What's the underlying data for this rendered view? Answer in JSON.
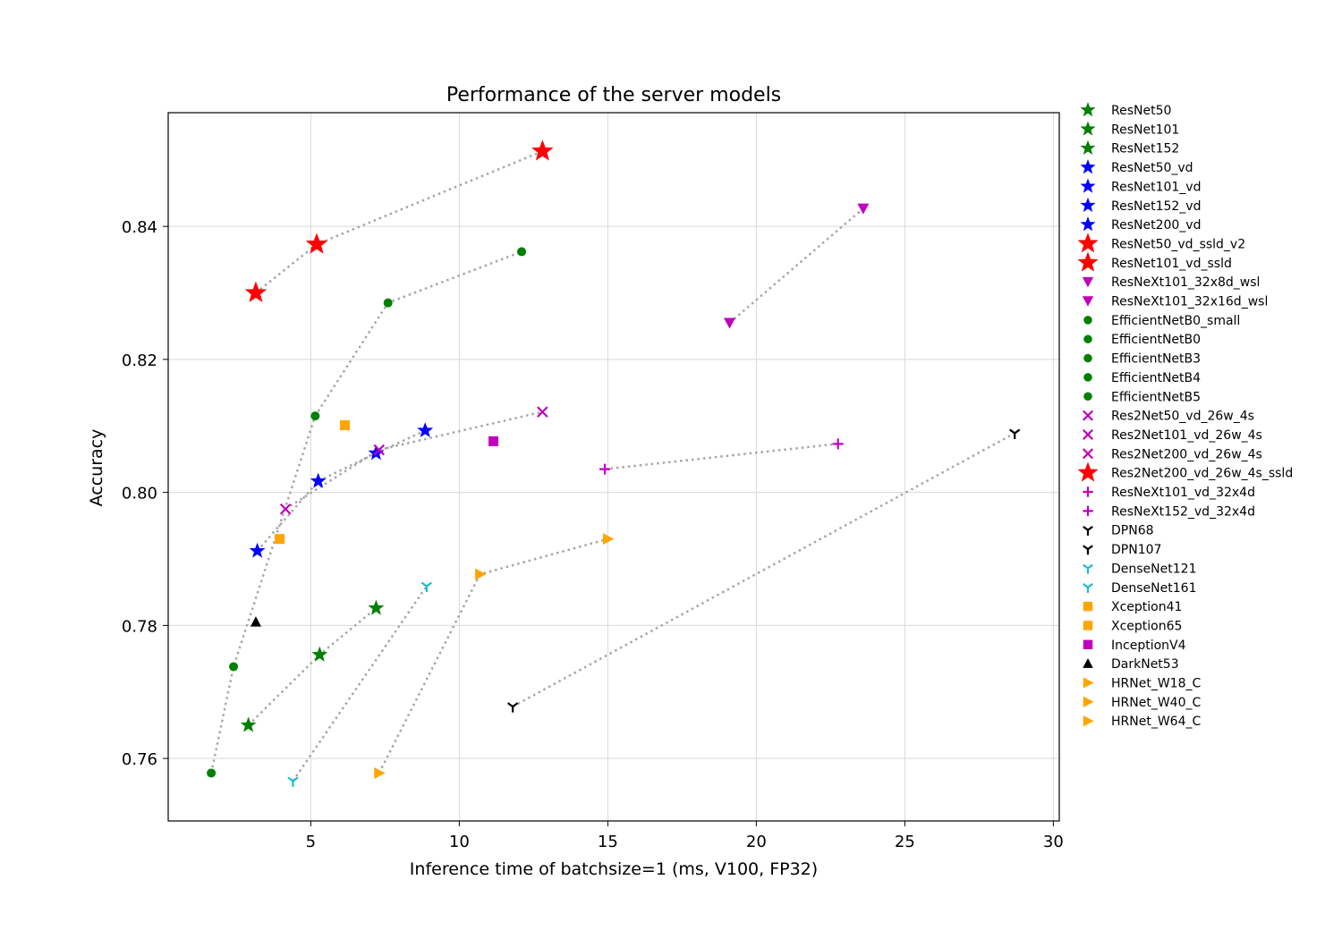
{
  "chart_data": {
    "type": "scatter",
    "title": "Performance of the server models",
    "xlabel": "Inference time of batchsize=1 (ms, V100, FP32)",
    "ylabel": "Accuracy",
    "xlim": [
      0.2,
      30.2
    ],
    "ylim": [
      0.7506,
      0.8571
    ],
    "xticks": [
      5,
      10,
      15,
      20,
      25,
      30
    ],
    "yticks": [
      0.76,
      0.78,
      0.8,
      0.82,
      0.84
    ],
    "xtick_labels": [
      "5",
      "10",
      "15",
      "20",
      "25",
      "30"
    ],
    "ytick_labels": [
      "0.76",
      "0.78",
      "0.80",
      "0.82",
      "0.84"
    ],
    "grid": true,
    "legend_position": "outside-right",
    "colors": {
      "green": "#008000",
      "blue": "#0000ff",
      "red": "#ff0000",
      "magenta": "#bf00bf",
      "black": "#000000",
      "cyan": "#17becf",
      "orange": "#ffa500",
      "connector": "#a6a6a6"
    },
    "families": [
      {
        "name": "ResNet",
        "marker": "star",
        "color": "green",
        "points": [
          [
            2.9,
            0.765
          ],
          [
            5.3,
            0.7756
          ],
          [
            7.2,
            0.7826
          ]
        ]
      },
      {
        "name": "ResNet_vd",
        "marker": "star",
        "color": "blue",
        "points": [
          [
            3.2,
            0.7912
          ],
          [
            5.25,
            0.8017
          ],
          [
            7.2,
            0.8059
          ],
          [
            8.85,
            0.8093
          ]
        ]
      },
      {
        "name": "ResNet_vd_ssld",
        "marker": "bigstar",
        "color": "red",
        "points": [
          [
            3.15,
            0.83
          ],
          [
            5.2,
            0.8373
          ],
          [
            12.8,
            0.8513
          ]
        ]
      },
      {
        "name": "ResNeXt_wsl",
        "marker": "tri_down",
        "color": "magenta",
        "points": [
          [
            19.1,
            0.8255
          ],
          [
            23.6,
            0.8427
          ]
        ]
      },
      {
        "name": "EfficientNet",
        "marker": "circle",
        "color": "green",
        "points": [
          [
            1.65,
            0.7578
          ],
          [
            2.4,
            0.7738
          ],
          [
            5.15,
            0.8115
          ],
          [
            7.6,
            0.8285
          ],
          [
            12.1,
            0.8362
          ]
        ]
      },
      {
        "name": "Res2Net",
        "marker": "x",
        "color": "magenta",
        "points": [
          [
            4.15,
            0.7975
          ],
          [
            7.3,
            0.8064
          ],
          [
            12.8,
            0.8121
          ]
        ]
      },
      {
        "name": "ResNeXt_vd",
        "marker": "plus",
        "color": "magenta",
        "points": [
          [
            14.9,
            0.8035
          ],
          [
            22.75,
            0.8073
          ]
        ]
      },
      {
        "name": "DPN",
        "marker": "tri_y",
        "color": "black",
        "points": [
          [
            11.8,
            0.7678
          ],
          [
            28.7,
            0.8089
          ]
        ]
      },
      {
        "name": "DenseNet",
        "marker": "tri_y",
        "color": "cyan",
        "points": [
          [
            4.4,
            0.7566
          ],
          [
            8.9,
            0.7859
          ]
        ]
      },
      {
        "name": "Xception",
        "marker": "square",
        "color": "orange",
        "points": [
          [
            3.95,
            0.793
          ],
          [
            6.15,
            0.8101
          ]
        ]
      },
      {
        "name": "InceptionV4",
        "marker": "square",
        "color": "magenta",
        "points": [
          [
            11.15,
            0.8077
          ]
        ]
      },
      {
        "name": "DarkNet53",
        "marker": "triangle_up",
        "color": "black",
        "points": [
          [
            3.15,
            0.7805
          ]
        ]
      },
      {
        "name": "HRNet",
        "marker": "triangle_right",
        "color": "orange",
        "points": [
          [
            7.3,
            0.7578
          ],
          [
            10.7,
            0.7877
          ],
          [
            15.0,
            0.793
          ]
        ]
      }
    ],
    "connected_families": [
      "ResNet",
      "ResNet_vd",
      "ResNet_vd_ssld",
      "ResNeXt_wsl",
      "EfficientNet",
      "Res2Net",
      "ResNeXt_vd",
      "DPN",
      "DenseNet",
      "HRNet"
    ],
    "legend": [
      {
        "label": "ResNet50",
        "marker": "star",
        "color": "green"
      },
      {
        "label": "ResNet101",
        "marker": "star",
        "color": "green"
      },
      {
        "label": "ResNet152",
        "marker": "star",
        "color": "green"
      },
      {
        "label": "ResNet50_vd",
        "marker": "star",
        "color": "blue"
      },
      {
        "label": "ResNet101_vd",
        "marker": "star",
        "color": "blue"
      },
      {
        "label": "ResNet152_vd",
        "marker": "star",
        "color": "blue"
      },
      {
        "label": "ResNet200_vd",
        "marker": "star",
        "color": "blue"
      },
      {
        "label": "ResNet50_vd_ssld_v2",
        "marker": "bigstar",
        "color": "red"
      },
      {
        "label": "ResNet101_vd_ssld",
        "marker": "bigstar",
        "color": "red"
      },
      {
        "label": "ResNeXt101_32x8d_wsl",
        "marker": "tri_down",
        "color": "magenta"
      },
      {
        "label": "ResNeXt101_32x16d_wsl",
        "marker": "tri_down",
        "color": "magenta"
      },
      {
        "label": "EfficientNetB0_small",
        "marker": "circle",
        "color": "green"
      },
      {
        "label": "EfficientNetB0",
        "marker": "circle",
        "color": "green"
      },
      {
        "label": "EfficientNetB3",
        "marker": "circle",
        "color": "green"
      },
      {
        "label": "EfficientNetB4",
        "marker": "circle",
        "color": "green"
      },
      {
        "label": "EfficientNetB5",
        "marker": "circle",
        "color": "green"
      },
      {
        "label": "Res2Net50_vd_26w_4s",
        "marker": "x",
        "color": "magenta"
      },
      {
        "label": "Res2Net101_vd_26w_4s",
        "marker": "x",
        "color": "magenta"
      },
      {
        "label": "Res2Net200_vd_26w_4s",
        "marker": "x",
        "color": "magenta"
      },
      {
        "label": "Res2Net200_vd_26w_4s_ssld",
        "marker": "bigstar",
        "color": "red"
      },
      {
        "label": "ResNeXt101_vd_32x4d",
        "marker": "plus",
        "color": "magenta"
      },
      {
        "label": "ResNeXt152_vd_32x4d",
        "marker": "plus",
        "color": "magenta"
      },
      {
        "label": "DPN68",
        "marker": "tri_y",
        "color": "black"
      },
      {
        "label": "DPN107",
        "marker": "tri_y",
        "color": "black"
      },
      {
        "label": "DenseNet121",
        "marker": "tri_y",
        "color": "cyan"
      },
      {
        "label": "DenseNet161",
        "marker": "tri_y",
        "color": "cyan"
      },
      {
        "label": "Xception41",
        "marker": "square",
        "color": "orange"
      },
      {
        "label": "Xception65",
        "marker": "square",
        "color": "orange"
      },
      {
        "label": "InceptionV4",
        "marker": "square",
        "color": "magenta"
      },
      {
        "label": "DarkNet53",
        "marker": "triangle_up",
        "color": "black"
      },
      {
        "label": "HRNet_W18_C",
        "marker": "triangle_right",
        "color": "orange"
      },
      {
        "label": "HRNet_W40_C",
        "marker": "triangle_right",
        "color": "orange"
      },
      {
        "label": "HRNet_W64_C",
        "marker": "triangle_right",
        "color": "orange"
      }
    ]
  }
}
